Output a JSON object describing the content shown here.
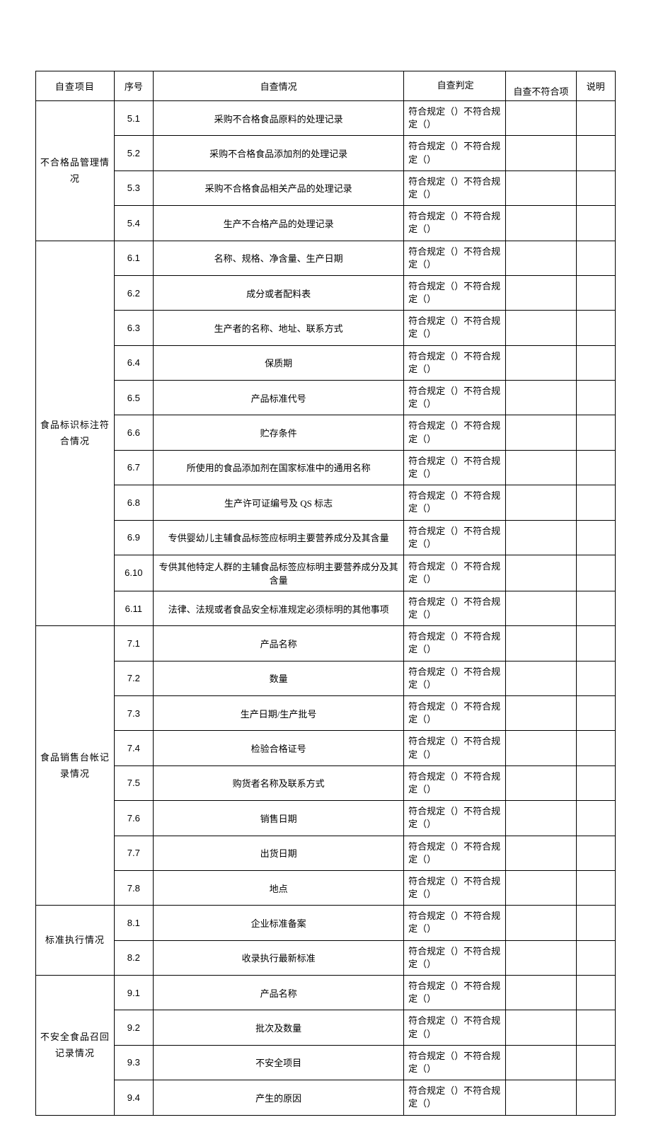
{
  "headers": {
    "category": "自查项目",
    "num": "序号",
    "desc": "自查情况",
    "judge": "自查判定",
    "noncomp": "自查不符合项",
    "note": "说明"
  },
  "judge_text": "符合规定（）不符合规定（）",
  "sections": [
    {
      "category": "不合格品管理情况",
      "rows": [
        {
          "num": "5.1",
          "desc": "采购不合格食品原料的处理记录"
        },
        {
          "num": "5.2",
          "desc": "采购不合格食品添加剂的处理记录"
        },
        {
          "num": "5.3",
          "desc": "采购不合格食品相关产品的处理记录"
        },
        {
          "num": "5.4",
          "desc": "生产不合格产品的处理记录"
        }
      ]
    },
    {
      "category": "食品标识标注符合情况",
      "rows": [
        {
          "num": "6.1",
          "desc": "名称、规格、净含量、生产日期"
        },
        {
          "num": "6.2",
          "desc": "成分或者配料表"
        },
        {
          "num": "6.3",
          "desc": "生产者的名称、地址、联系方式"
        },
        {
          "num": "6.4",
          "desc": "保质期"
        },
        {
          "num": "6.5",
          "desc": "产品标准代号"
        },
        {
          "num": "6.6",
          "desc": "贮存条件"
        },
        {
          "num": "6.7",
          "desc": "所使用的食品添加剂在国家标准中的通用名称"
        },
        {
          "num": "6.8",
          "desc": "生产许可证编号及 QS 标志"
        },
        {
          "num": "6.9",
          "desc": "专供婴幼儿主辅食品标签应标明主要营养成分及其含量"
        },
        {
          "num": "6.10",
          "desc": "专供其他特定人群的主辅食品标签应标明主要营养成分及其含量"
        },
        {
          "num": "6.11",
          "desc": "法律、法规或者食品安全标准规定必须标明的其他事项"
        }
      ]
    },
    {
      "category": "食品销售台帐记录情况",
      "rows": [
        {
          "num": "7.1",
          "desc": "产品名称"
        },
        {
          "num": "7.2",
          "desc": "数量"
        },
        {
          "num": "7.3",
          "desc": "生产日期/生产批号"
        },
        {
          "num": "7.4",
          "desc": "检验合格证号"
        },
        {
          "num": "7.5",
          "desc": "购货者名称及联系方式"
        },
        {
          "num": "7.6",
          "desc": "销售日期"
        },
        {
          "num": "7.7",
          "desc": "出货日期"
        },
        {
          "num": "7.8",
          "desc": "地点"
        }
      ]
    },
    {
      "category": "标准执行情况",
      "rows": [
        {
          "num": "8.1",
          "desc": "企业标准备案"
        },
        {
          "num": "8.2",
          "desc": "收录执行最新标准"
        }
      ]
    },
    {
      "category": "不安全食品召回记录情况",
      "rows": [
        {
          "num": "9.1",
          "desc": "产品名称"
        },
        {
          "num": "9.2",
          "desc": "批次及数量"
        },
        {
          "num": "9.3",
          "desc": "不安全项目"
        },
        {
          "num": "9.4",
          "desc": "产生的原因"
        }
      ]
    }
  ]
}
